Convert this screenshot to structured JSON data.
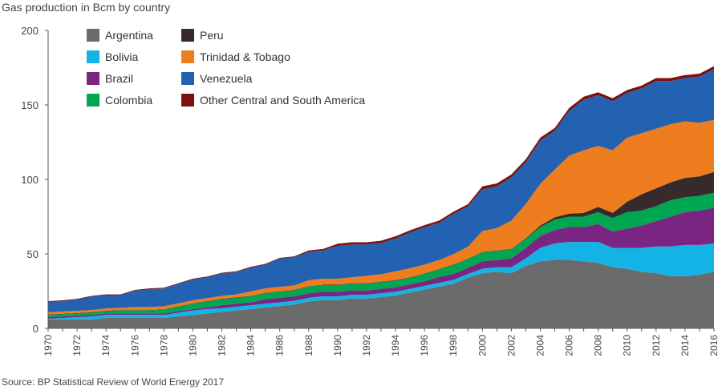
{
  "chart_data": {
    "type": "area",
    "stacked": true,
    "title": "Gas production in Bcm by country",
    "source": "Source: BP Statistical Review of World Energy 2017",
    "xlabel": "",
    "ylabel": "",
    "ylim": [
      0,
      200
    ],
    "yticks": [
      0,
      50,
      100,
      150,
      200
    ],
    "x": [
      1970,
      1971,
      1972,
      1973,
      1974,
      1975,
      1976,
      1977,
      1978,
      1979,
      1980,
      1981,
      1982,
      1983,
      1984,
      1985,
      1986,
      1987,
      1988,
      1989,
      1990,
      1991,
      1992,
      1993,
      1994,
      1995,
      1996,
      1997,
      1998,
      1999,
      2000,
      2001,
      2002,
      2003,
      2004,
      2005,
      2006,
      2007,
      2008,
      2009,
      2010,
      2011,
      2012,
      2013,
      2014,
      2015,
      2016
    ],
    "xtick_labels": [
      "1970",
      "1972",
      "1974",
      "1976",
      "1978",
      "1980",
      "1982",
      "1984",
      "1986",
      "1988",
      "1990",
      "1992",
      "1994",
      "1996",
      "1998",
      "2000",
      "2002",
      "2004",
      "2006",
      "2008",
      "2010",
      "2012",
      "2014",
      "2016"
    ],
    "legend_position": "top-left",
    "series": [
      {
        "name": "Argentina",
        "color": "#6b6b6b",
        "values": [
          6,
          6,
          6,
          6,
          7,
          7,
          7,
          7,
          7,
          8,
          9,
          10,
          11,
          12,
          13,
          14,
          15,
          16,
          18,
          19,
          19,
          20,
          20,
          21,
          22,
          24,
          26,
          28,
          30,
          34,
          37,
          38,
          37,
          42,
          45,
          46,
          46,
          45,
          44,
          41,
          40,
          38,
          37,
          35,
          35,
          36,
          38
        ]
      },
      {
        "name": "Bolivia",
        "color": "#13b3e6",
        "values": [
          0.5,
          1,
          1.5,
          2,
          2,
          2,
          2,
          2,
          2,
          2.5,
          3,
          3,
          2.5,
          2.5,
          2.5,
          2.5,
          2.5,
          2.5,
          2.5,
          2.5,
          2.5,
          2.5,
          2.5,
          2.5,
          2.5,
          2.5,
          2.5,
          2.5,
          2.5,
          2.5,
          3,
          3,
          4,
          5,
          9,
          11,
          12,
          13,
          14,
          13,
          14,
          16,
          18,
          20,
          21,
          20,
          19
        ]
      },
      {
        "name": "Brazil",
        "color": "#7a2581",
        "values": [
          1,
          1,
          1,
          1,
          1,
          1,
          1,
          1,
          1,
          1,
          1,
          1,
          2,
          2,
          2,
          3,
          3,
          3,
          3,
          3,
          3,
          3,
          3,
          3,
          3,
          3,
          3,
          4,
          4,
          4,
          5,
          5,
          6,
          7,
          8,
          9,
          10,
          10,
          12,
          11,
          13,
          15,
          17,
          20,
          22,
          23,
          24
        ]
      },
      {
        "name": "Colombia",
        "color": "#00a651",
        "values": [
          1.5,
          1.5,
          1.5,
          1.5,
          1.5,
          2,
          2,
          2,
          2.5,
          3,
          3.5,
          4,
          4,
          4,
          4,
          4,
          4,
          4,
          4.5,
          4.5,
          4.5,
          4.5,
          4.5,
          4.5,
          4.5,
          4.5,
          5,
          5,
          6,
          6,
          6,
          6,
          6,
          6,
          6,
          7,
          7,
          7,
          8,
          9,
          11,
          10,
          10,
          11,
          10,
          10,
          10
        ]
      },
      {
        "name": "Peru",
        "color": "#362a2a",
        "values": [
          0.3,
          0.3,
          0.3,
          0.3,
          0.3,
          0.3,
          0.3,
          0.3,
          0.3,
          0.3,
          0.3,
          0.3,
          0.3,
          0.3,
          0.3,
          0.3,
          0.3,
          0.3,
          0.3,
          0.3,
          0.3,
          0.3,
          0.3,
          0.3,
          0.3,
          0.3,
          0.3,
          0.3,
          0.3,
          0.3,
          0.3,
          0.3,
          0.3,
          0.5,
          1,
          1.5,
          2,
          2.5,
          3.5,
          3.5,
          7,
          11,
          12,
          12,
          13,
          13,
          14
        ]
      },
      {
        "name": "Trinidad & Tobago",
        "color": "#ee7d20",
        "values": [
          1.5,
          1.5,
          1.5,
          1.5,
          1.5,
          1.5,
          2,
          2,
          2,
          2,
          2,
          2,
          2,
          2,
          3,
          3,
          3,
          3,
          4,
          4,
          4,
          4,
          5,
          5,
          6,
          6,
          6,
          6,
          7,
          8,
          14,
          15,
          19,
          23,
          28,
          32,
          39,
          42,
          41,
          42,
          43,
          41,
          40,
          39,
          38,
          36,
          35
        ]
      },
      {
        "name": "Venezuela",
        "color": "#2362b0",
        "values": [
          7,
          7,
          7.5,
          9,
          9,
          8.5,
          11,
          12,
          12,
          13,
          14,
          14,
          15,
          15,
          16,
          16,
          19,
          19,
          19,
          19,
          22,
          22,
          21,
          21,
          22,
          24,
          25,
          25,
          27,
          27,
          28,
          28,
          29,
          28,
          29,
          26,
          30,
          34,
          34,
          33,
          30,
          30,
          32,
          29,
          29,
          31,
          34
        ]
      },
      {
        "name": "Other Central and South America",
        "color": "#7b1212",
        "values": [
          0.5,
          0.5,
          0.5,
          0.5,
          0.5,
          0.5,
          0.5,
          0.5,
          0.5,
          0.5,
          0.5,
          0.5,
          0.5,
          0.5,
          0.5,
          0.5,
          0.5,
          0.5,
          1,
          1,
          1.5,
          1.5,
          1.5,
          1.5,
          1.5,
          1.5,
          1.5,
          1.5,
          1.5,
          1.5,
          2,
          2,
          2,
          2,
          2,
          2,
          2,
          2,
          2,
          2,
          2,
          2,
          2,
          2,
          2,
          2,
          2
        ]
      }
    ]
  }
}
